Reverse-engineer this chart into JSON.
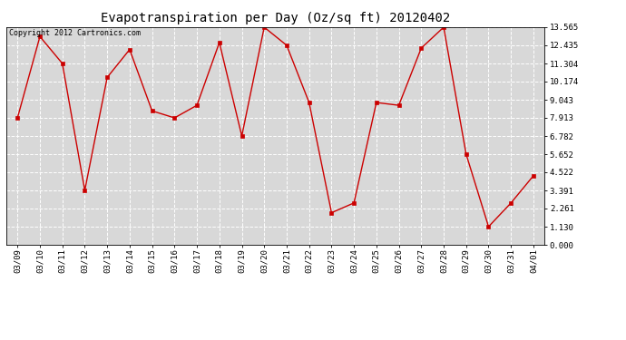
{
  "title": "Evapotranspiration per Day (Oz/sq ft) 20120402",
  "copyright_text": "Copyright 2012 Cartronics.com",
  "x_labels": [
    "03/09",
    "03/10",
    "03/11",
    "03/12",
    "03/13",
    "03/14",
    "03/15",
    "03/16",
    "03/17",
    "03/18",
    "03/19",
    "03/20",
    "03/21",
    "03/22",
    "03/23",
    "03/24",
    "03/25",
    "03/26",
    "03/27",
    "03/28",
    "03/29",
    "03/30",
    "03/31",
    "04/01"
  ],
  "y_values": [
    7.913,
    12.983,
    11.304,
    3.391,
    10.435,
    12.174,
    8.348,
    7.913,
    8.696,
    12.609,
    6.782,
    13.565,
    12.435,
    8.87,
    2.0,
    2.609,
    8.87,
    8.696,
    12.261,
    13.565,
    5.652,
    1.13,
    2.609,
    4.304
  ],
  "line_color": "#cc0000",
  "marker": "s",
  "marker_size": 2.5,
  "marker_color": "#cc0000",
  "bg_color": "#ffffff",
  "plot_bg_color": "#d8d8d8",
  "grid_color": "#ffffff",
  "y_ticks": [
    0.0,
    1.13,
    2.261,
    3.391,
    4.522,
    5.652,
    6.782,
    7.913,
    9.043,
    10.174,
    11.304,
    12.435,
    13.565
  ],
  "ylim": [
    0.0,
    13.565
  ],
  "title_fontsize": 10,
  "copyright_fontsize": 6,
  "tick_fontsize": 6.5
}
